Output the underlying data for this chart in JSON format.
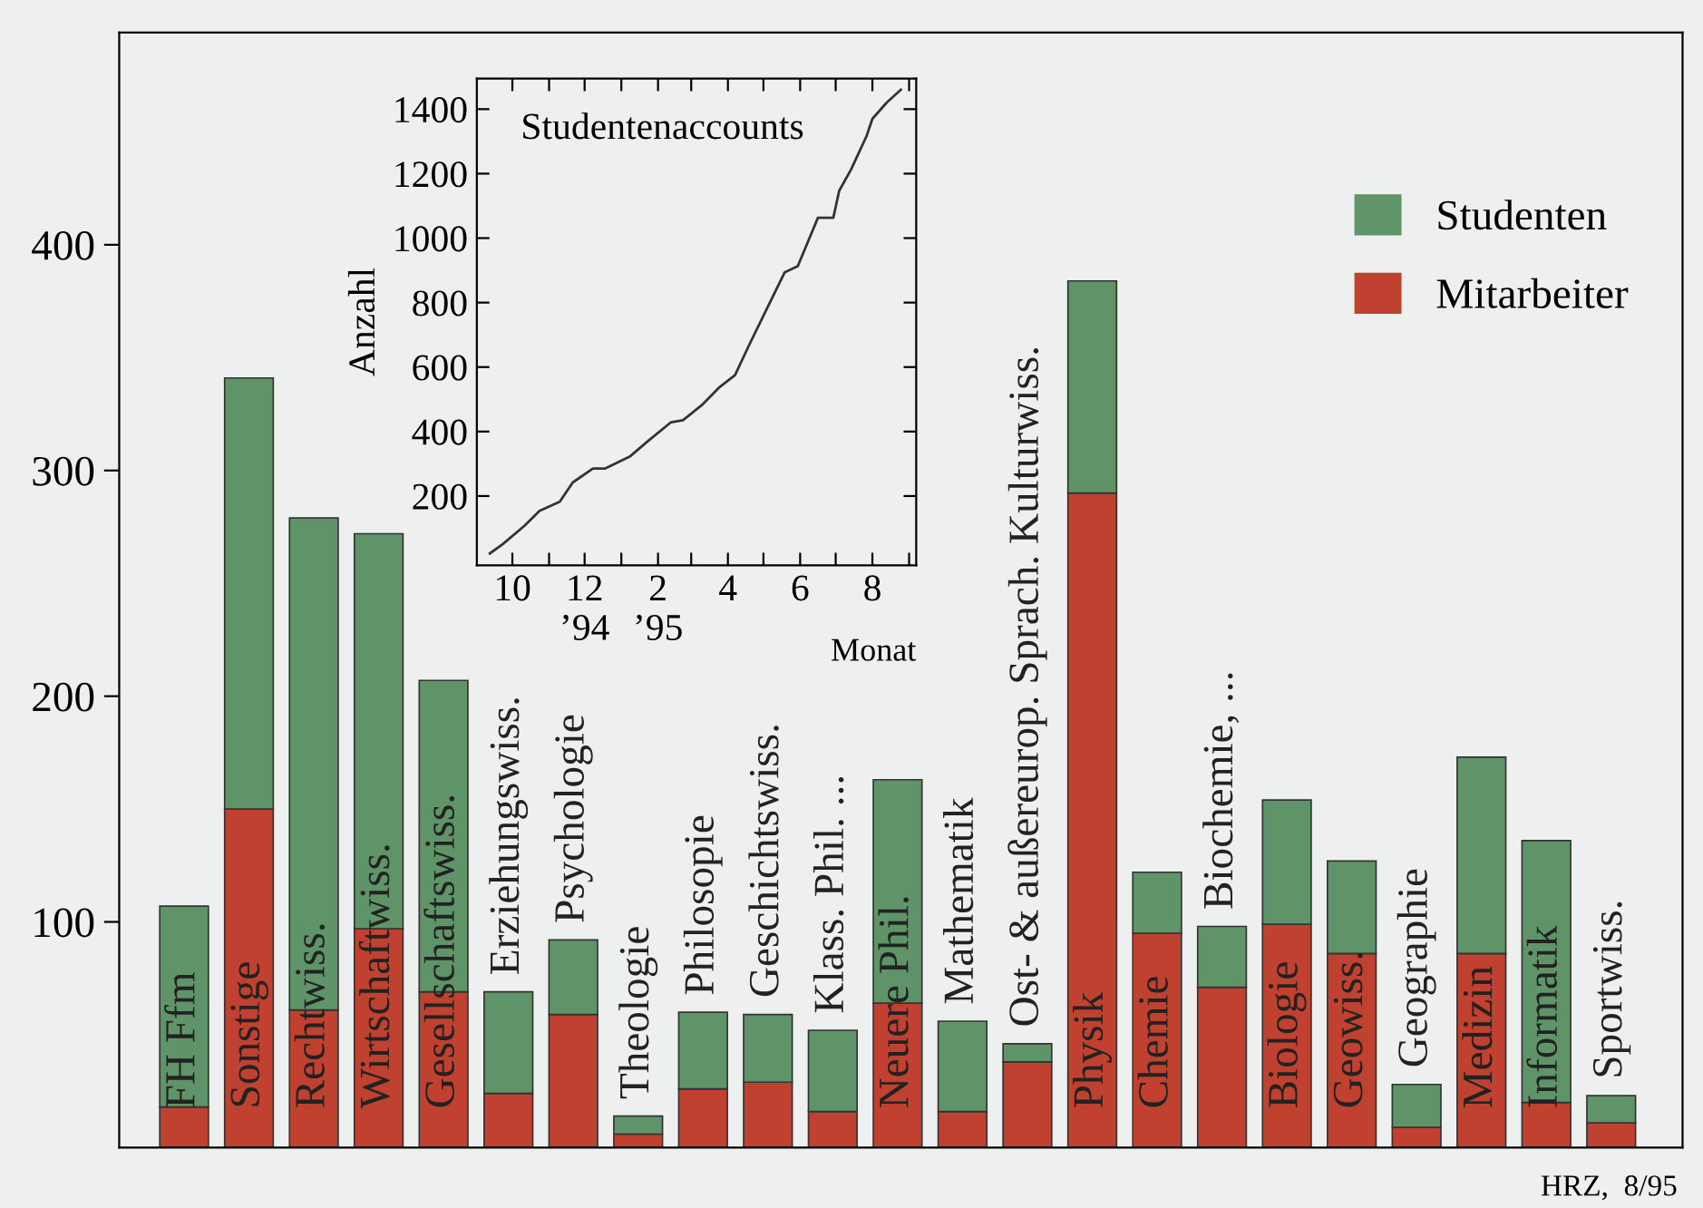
{
  "chart_data": [
    {
      "type": "bar",
      "stacked": true,
      "categories": [
        "FH Ffm",
        "Sonstige",
        "Rechtwiss.",
        "Wirtschaftwiss.",
        "Gesellschaftswiss.",
        "Erziehungswiss.",
        "Psychologie",
        "Theologie",
        "Philosopie",
        "Geschichtswiss.",
        "Klass. Phil. ...",
        "Neuere Phil.",
        "Mathematik",
        "Ost- & außereurop. Sprach. Kulturwiss.",
        "Physik",
        "Chemie",
        "Biochemie, ...",
        "Biologie",
        "Geowiss.",
        "Geographie",
        "Medizin",
        "Informatik",
        "Sportwiss."
      ],
      "series": [
        {
          "name": "Mitarbeiter",
          "color": "#c0412f",
          "values": [
            18,
            150,
            61,
            97,
            69,
            24,
            59,
            6,
            26,
            29,
            16,
            64,
            16,
            38,
            290,
            95,
            71,
            99,
            86,
            9,
            86,
            20,
            11
          ]
        },
        {
          "name": "Studenten",
          "color": "#5e9468",
          "values": [
            89,
            191,
            218,
            175,
            138,
            45,
            33,
            8,
            34,
            30,
            36,
            99,
            40,
            8,
            94,
            27,
            27,
            55,
            41,
            19,
            87,
            116,
            12
          ]
        }
      ],
      "ylim": [
        0,
        494
      ],
      "yticks": [
        100,
        200,
        300,
        400
      ],
      "grid": false,
      "legend": "right",
      "annotations": [
        "HRZ,  8/95"
      ]
    },
    {
      "type": "line",
      "title": "Studentenaccounts",
      "ylabel": "Anzahl",
      "xlabel": "Monat",
      "series": [
        {
          "color": "#333333",
          "x": [
            "1994-09-12",
            "1994-09-23",
            "1994-10-11",
            "1994-10-24",
            "1994-11-10",
            "1994-11-21",
            "1994-12-08",
            "1994-12-18",
            "1995-01-08",
            "1995-01-23",
            "1995-02-12",
            "1995-02-22",
            "1995-03-10",
            "1995-03-25",
            "1995-04-07",
            "1995-04-19",
            "1995-05-04",
            "1995-05-19",
            "1995-05-30",
            "1995-06-16",
            "1995-06-29",
            "1995-07-04",
            "1995-07-14",
            "1995-07-27",
            "1995-08-01",
            "1995-08-13",
            "1995-08-25"
          ],
          "values": [
            22,
            51,
            107,
            154,
            182,
            242,
            285,
            285,
            322,
            369,
            429,
            435,
            482,
            538,
            575,
            669,
            782,
            894,
            913,
            1063,
            1063,
            1147,
            1213,
            1316,
            1370,
            1420,
            1460
          ]
        }
      ],
      "xlim": [
        "1994-09-01",
        "1995-09-07"
      ],
      "ylim": [
        -15,
        1495
      ],
      "xticks": [
        {
          "value": "1994-10",
          "label": "10"
        },
        {
          "value": "1994-11",
          "label": null
        },
        {
          "value": "1994-12",
          "label": "12\n’94"
        },
        {
          "value": "1995-01",
          "label": null
        },
        {
          "value": "1995-02",
          "label": "2\n’95"
        },
        {
          "value": "1995-03",
          "label": null
        },
        {
          "value": "1995-04",
          "label": "4"
        },
        {
          "value": "1995-05",
          "label": null
        },
        {
          "value": "1995-06",
          "label": "6"
        },
        {
          "value": "1995-07",
          "label": null
        },
        {
          "value": "1995-08",
          "label": "8"
        },
        {
          "value": "1995-09",
          "label": null
        }
      ],
      "yticks": [
        200,
        400,
        600,
        800,
        1000,
        1200,
        1400
      ],
      "grid": false,
      "marker": "none",
      "line_style": "solid"
    }
  ]
}
